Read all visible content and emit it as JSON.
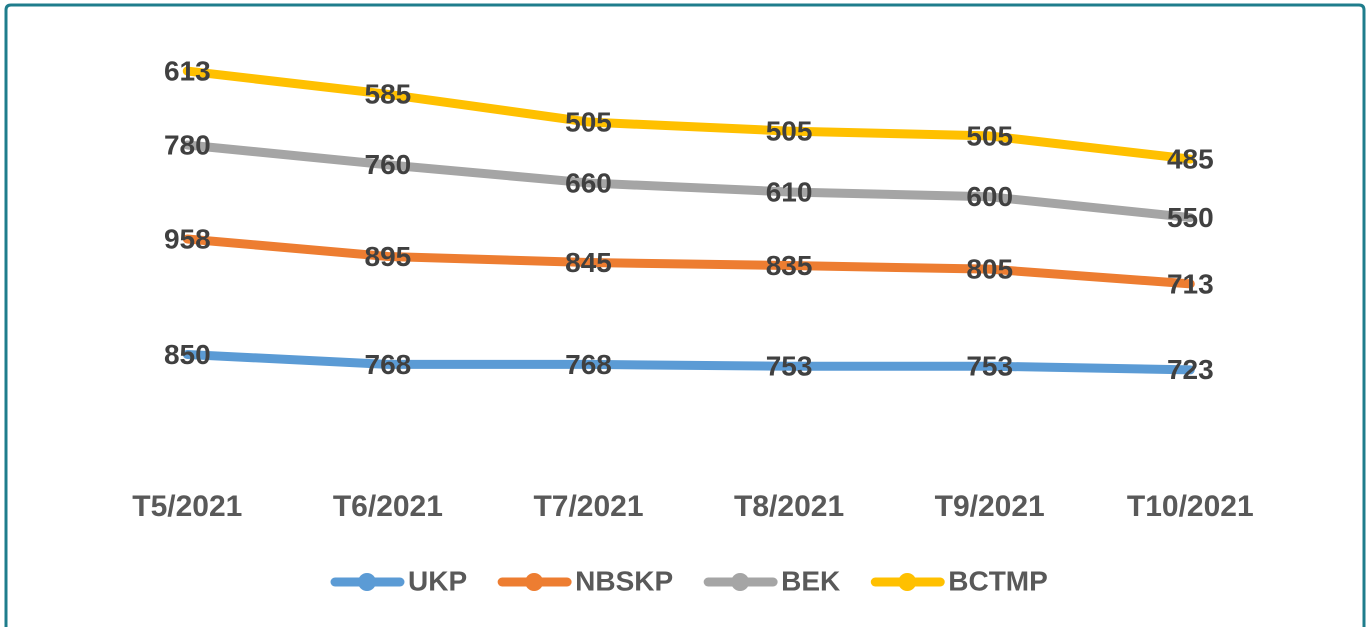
{
  "chart_data": {
    "type": "line",
    "stacked": true,
    "categories": [
      "T5/2021",
      "T6/2021",
      "T7/2021",
      "T8/2021",
      "T9/2021",
      "T10/2021"
    ],
    "series": [
      {
        "name": "UKP",
        "color": "#5b9bd5",
        "values": [
          850,
          768,
          768,
          753,
          753,
          723
        ]
      },
      {
        "name": "NBSKP",
        "color": "#ed7d31",
        "values": [
          958,
          895,
          845,
          835,
          805,
          713
        ]
      },
      {
        "name": "BEK",
        "color": "#a5a5a5",
        "values": [
          780,
          760,
          660,
          610,
          600,
          550
        ]
      },
      {
        "name": "BCTMP",
        "color": "#ffc000",
        "values": [
          613,
          585,
          505,
          505,
          505,
          485
        ]
      }
    ],
    "ylim": [
      0,
      3500
    ],
    "legend": "bottom"
  }
}
